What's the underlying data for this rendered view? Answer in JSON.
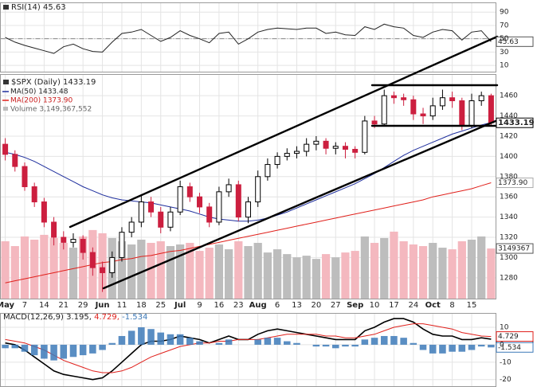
{
  "chart_data": {
    "type": "candlestick",
    "categories": [
      "May",
      null,
      "7",
      null,
      "14",
      null,
      "21",
      null,
      "29",
      null,
      "Jun",
      null,
      "11",
      null,
      "18",
      null,
      "25",
      null,
      "Jul",
      null,
      "9",
      null,
      "16",
      null,
      "23",
      null,
      "Aug",
      null,
      "6",
      null,
      "13",
      null,
      "20",
      null,
      "27",
      null,
      "Sep",
      null,
      "10",
      null,
      "17",
      null,
      "24",
      null,
      "Oct",
      null,
      "8",
      null,
      "15",
      null,
      null
    ],
    "grid": true,
    "price": {
      "title": "$SPX (Daily) 1433.19",
      "open": [
        1412,
        1402,
        1390,
        1370,
        1355,
        1335,
        1320,
        1315,
        1318,
        1305,
        1290,
        1285,
        1300,
        1325,
        1335,
        1355,
        1345,
        1330,
        1345,
        1370,
        1360,
        1350,
        1335,
        1365,
        1372,
        1340,
        1355,
        1380,
        1392,
        1400,
        1403,
        1405,
        1412,
        1415,
        1408,
        1410,
        1407,
        1404,
        1435,
        1432,
        1460,
        1458,
        1456,
        1442,
        1440,
        1450,
        1458,
        1455,
        1430,
        1455,
        1460
      ],
      "high": [
        1418,
        1406,
        1394,
        1374,
        1359,
        1340,
        1326,
        1324,
        1322,
        1310,
        1296,
        1306,
        1330,
        1340,
        1362,
        1360,
        1350,
        1350,
        1376,
        1374,
        1364,
        1354,
        1370,
        1378,
        1376,
        1360,
        1386,
        1398,
        1404,
        1408,
        1410,
        1418,
        1420,
        1418,
        1414,
        1414,
        1410,
        1440,
        1440,
        1466,
        1464,
        1462,
        1460,
        1448,
        1458,
        1466,
        1464,
        1458,
        1462,
        1464,
        1462
      ],
      "low": [
        1396,
        1385,
        1366,
        1350,
        1330,
        1312,
        1308,
        1310,
        1298,
        1282,
        1266,
        1280,
        1296,
        1320,
        1330,
        1340,
        1324,
        1326,
        1342,
        1355,
        1344,
        1330,
        1332,
        1360,
        1336,
        1334,
        1350,
        1376,
        1388,
        1396,
        1398,
        1400,
        1406,
        1402,
        1402,
        1398,
        1398,
        1402,
        1428,
        1430,
        1452,
        1450,
        1436,
        1432,
        1436,
        1446,
        1448,
        1426,
        1428,
        1450,
        1430
      ],
      "close": [
        1402,
        1390,
        1370,
        1355,
        1335,
        1320,
        1315,
        1318,
        1305,
        1290,
        1285,
        1300,
        1325,
        1335,
        1355,
        1345,
        1330,
        1345,
        1370,
        1360,
        1350,
        1335,
        1365,
        1372,
        1340,
        1355,
        1380,
        1392,
        1400,
        1403,
        1405,
        1412,
        1415,
        1408,
        1410,
        1407,
        1404,
        1435,
        1432,
        1460,
        1458,
        1456,
        1442,
        1440,
        1450,
        1458,
        1455,
        1430,
        1455,
        1460,
        1433.19
      ],
      "ylim": [
        1259,
        1481
      ],
      "yticks": [
        1280,
        1300,
        1320,
        1340,
        1360,
        1380,
        1400,
        1420,
        1440,
        1460
      ],
      "up_color": "#000000",
      "down_color": "#cc1f3f",
      "ma": [
        {
          "name": "MA(50) 1433.48",
          "color": "#1f2f9e",
          "values": [
            1404,
            1402,
            1399,
            1395,
            1390,
            1385,
            1380,
            1375,
            1370,
            1366,
            1362,
            1359,
            1357,
            1356,
            1355,
            1354,
            1352,
            1350,
            1348,
            1346,
            1343,
            1340,
            1338,
            1337,
            1336,
            1336,
            1337,
            1339,
            1342,
            1345,
            1349,
            1353,
            1357,
            1361,
            1365,
            1369,
            1373,
            1378,
            1383,
            1389,
            1395,
            1401,
            1406,
            1410,
            1414,
            1418,
            1422,
            1425,
            1428,
            1431,
            1433.48
          ]
        },
        {
          "name": "MA(200) 1373.90",
          "color": "#e0201b",
          "last_label": "1373.90",
          "values": [
            1275,
            1277,
            1279,
            1281,
            1283,
            1285,
            1287,
            1289,
            1291,
            1293,
            1295,
            1296,
            1298,
            1299,
            1301,
            1302,
            1304,
            1306,
            1307,
            1309,
            1311,
            1313,
            1315,
            1317,
            1319,
            1321,
            1323,
            1325,
            1327,
            1329,
            1331,
            1333,
            1335,
            1337,
            1339,
            1341,
            1343,
            1345,
            1347,
            1349,
            1351,
            1353,
            1355,
            1357,
            1360,
            1362,
            1364,
            1366,
            1368,
            1371,
            1373.9
          ]
        }
      ],
      "volume": {
        "name": "Volume 3,149,367,552",
        "up_color": "#bdbdbd",
        "down_color": "#f4b8bf",
        "ylim": [
          0,
          14000000
        ],
        "values": [
          3600000,
          3300000,
          3900000,
          3700000,
          4000000,
          3800000,
          3500000,
          3200000,
          3900000,
          4300000,
          4100000,
          3800000,
          3600000,
          3400000,
          3700000,
          3500000,
          3600000,
          3300000,
          3400000,
          3500000,
          3000000,
          3200000,
          3400000,
          3100000,
          3600000,
          3300000,
          3500000,
          2900000,
          3100000,
          2800000,
          2600000,
          2700000,
          2500000,
          2800000,
          2600000,
          2900000,
          3000000,
          3900000,
          3500000,
          3800000,
          4200000,
          3600000,
          3400000,
          3300000,
          3500000,
          3200000,
          3100000,
          3600000,
          3700000,
          3900000,
          3149367
        ]
      }
    },
    "rsi": {
      "title": "RSI(14) 45.63",
      "color": "#222222",
      "values": [
        52,
        45,
        40,
        36,
        32,
        28,
        38,
        42,
        35,
        31,
        30,
        45,
        58,
        60,
        64,
        55,
        46,
        52,
        62,
        55,
        50,
        44,
        58,
        60,
        42,
        50,
        60,
        64,
        66,
        65,
        64,
        66,
        66,
        58,
        60,
        56,
        55,
        68,
        64,
        72,
        68,
        66,
        55,
        52,
        60,
        64,
        62,
        48,
        60,
        62,
        45.63
      ],
      "ylim": [
        0,
        104
      ],
      "yticks": [
        10,
        30,
        50,
        70,
        90
      ]
    },
    "macd": {
      "title": "MACD(12,26,9)",
      "ylim": [
        -24,
        18
      ],
      "yticks": [
        -20,
        -10,
        0,
        10
      ],
      "series": [
        {
          "name": "3.195,",
          "color": "#000000",
          "values": [
            1,
            0,
            -3,
            -7,
            -11,
            -15,
            -17,
            -18,
            -19,
            -20,
            -19,
            -15,
            -10,
            -5,
            0,
            2,
            2,
            3,
            5,
            4,
            3,
            1,
            3,
            5,
            3,
            3,
            6,
            8,
            9,
            8,
            7,
            6,
            5,
            4,
            3,
            3,
            3,
            8,
            10,
            13,
            15,
            15,
            13,
            9,
            6,
            5,
            5,
            3,
            3,
            4,
            3.195
          ]
        },
        {
          "name": "4.729,",
          "color": "#e0201b",
          "values": [
            3,
            2,
            1,
            -1,
            -3,
            -6,
            -9,
            -11,
            -13,
            -15,
            -16,
            -16,
            -15,
            -13,
            -10,
            -7,
            -5,
            -3,
            -1,
            0,
            1,
            1,
            2,
            2,
            3,
            3,
            3,
            4,
            5,
            6,
            6,
            6,
            6,
            5,
            5,
            4,
            4,
            5,
            6,
            8,
            10,
            11,
            12,
            12,
            11,
            10,
            9,
            7,
            6,
            5,
            4.729
          ]
        },
        {
          "name": "-1.534",
          "color": "#3d7ab8",
          "kind": "bar",
          "values": [
            -2,
            -2,
            -4,
            -6,
            -8,
            -9,
            -8,
            -7,
            -6,
            -5,
            -3,
            1,
            5,
            8,
            10,
            9,
            7,
            6,
            6,
            4,
            2,
            0,
            1,
            3,
            0,
            0,
            3,
            4,
            4,
            2,
            1,
            0,
            -1,
            -1,
            -2,
            -1,
            -1,
            3,
            4,
            5,
            5,
            4,
            1,
            -3,
            -5,
            -5,
            -4,
            -4,
            -3,
            -1,
            -1.534
          ]
        }
      ]
    }
  }
}
